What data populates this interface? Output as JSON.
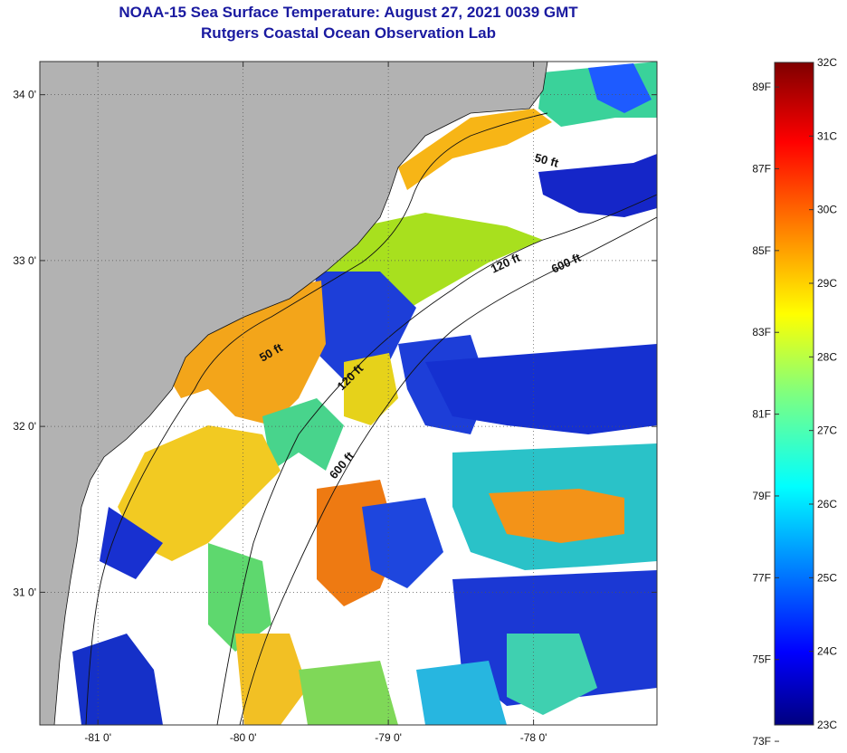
{
  "header": {
    "title": "NOAA-15 Sea Surface Temperature:  August 27, 2021 0039 GMT",
    "subtitle": "Rutgers Coastal Ocean Observation Lab"
  },
  "map": {
    "lon_range": [
      -81.4,
      -77.15
    ],
    "lat_range": [
      30.2,
      34.2
    ],
    "lon_ticks": [
      {
        "value": -81,
        "label": "-81 0'"
      },
      {
        "value": -80,
        "label": "-80 0'"
      },
      {
        "value": -79,
        "label": "-79 0'"
      },
      {
        "value": -78,
        "label": "-78 0'"
      }
    ],
    "lat_ticks": [
      {
        "value": 34,
        "label": "34 0'"
      },
      {
        "value": 33,
        "label": "33 0'"
      },
      {
        "value": 32,
        "label": "32 0'"
      },
      {
        "value": 31,
        "label": "31 0'"
      }
    ],
    "land_color": "#b2b2b2",
    "cloud_color": "#ffffff",
    "grid": "dotted",
    "isobaths": [
      {
        "label": "50 ft",
        "depth_ft": 50
      },
      {
        "label": "120 ft",
        "depth_ft": 120
      },
      {
        "label": "600 ft",
        "depth_ft": 600
      }
    ]
  },
  "colorbar": {
    "celsius_labels": [
      "32C",
      "31C",
      "30C",
      "29C",
      "28C",
      "27C",
      "26C",
      "25C",
      "24C",
      "23C"
    ],
    "fahrenheit_labels": [
      "89F",
      "87F",
      "85F",
      "83F",
      "81F",
      "79F",
      "77F",
      "75F",
      "73F"
    ],
    "range_c": [
      23,
      32
    ],
    "colormap": "jet"
  }
}
